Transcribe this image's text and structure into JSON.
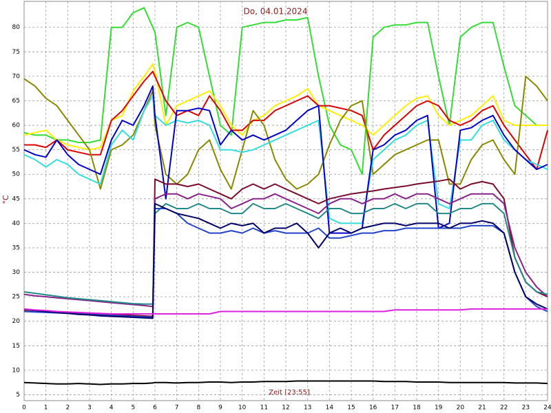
{
  "chart_data": {
    "type": "line",
    "title": "Do, 04.01.2024",
    "xlabel": "Zeit [23:55]",
    "ylabel": "°C",
    "xlim": [
      0,
      24
    ],
    "xticks": [
      0,
      1,
      2,
      3,
      4,
      5,
      6,
      7,
      8,
      9,
      10,
      11,
      12,
      13,
      14,
      15,
      16,
      17,
      18,
      19,
      20,
      21,
      22,
      23,
      24
    ],
    "ylim": [
      3.8,
      85.3
    ],
    "yticks": [
      5,
      10,
      15,
      20,
      25,
      30,
      35,
      40,
      45,
      50,
      55,
      60,
      65,
      70,
      75,
      80
    ],
    "grid": true,
    "x": [
      0,
      0.5,
      1,
      1.5,
      2,
      2.5,
      3,
      3.5,
      4,
      4.5,
      5,
      5.5,
      5.9,
      6,
      6.5,
      7,
      7.5,
      8,
      8.5,
      9,
      9.5,
      10,
      10.5,
      11,
      11.5,
      12,
      12.5,
      13,
      13.5,
      14,
      14.5,
      15,
      15.5,
      16,
      16.5,
      17,
      17.5,
      18,
      18.5,
      19,
      19.5,
      20,
      20.5,
      21,
      21.5,
      22,
      22.5,
      23,
      23.5,
      24
    ],
    "series": [
      {
        "color": "#33dd33",
        "values": [
          58.5,
          58,
          58,
          57,
          57,
          56.5,
          56.5,
          57,
          80,
          80,
          83,
          84,
          80,
          79,
          62,
          80,
          81,
          80,
          70,
          60,
          58,
          80,
          80.5,
          81,
          81,
          81.5,
          81.5,
          82,
          70,
          60,
          56,
          55,
          50,
          78,
          80,
          80.5,
          80.5,
          81,
          81,
          70,
          60,
          78,
          80,
          81,
          81,
          72,
          64,
          62,
          60,
          60
        ]
      },
      {
        "color": "#ffee00",
        "values": [
          58,
          58.5,
          59,
          57,
          56,
          55.5,
          55,
          55.5,
          61,
          62,
          67,
          70,
          72.5,
          71,
          60,
          64,
          65,
          66,
          67,
          64,
          60,
          58,
          61,
          62,
          64,
          65,
          66,
          67.5,
          64,
          63,
          62,
          61,
          60,
          58,
          60,
          62,
          64,
          65.5,
          66,
          62,
          60,
          61,
          62,
          64,
          66,
          61,
          60,
          60,
          60,
          60
        ]
      },
      {
        "color": "#dd0000",
        "values": [
          56,
          56,
          55.5,
          57,
          55,
          54.5,
          54,
          54,
          61,
          63,
          66,
          69,
          71,
          70,
          65,
          62,
          63,
          62,
          66,
          63,
          59,
          59,
          61,
          61,
          63,
          64,
          65,
          66,
          64,
          64,
          63.5,
          63,
          62,
          55,
          58,
          60,
          62,
          64,
          65,
          64,
          61,
          60,
          61,
          63,
          64,
          60,
          57,
          54,
          51,
          59
        ]
      },
      {
        "color": "#888800",
        "values": [
          69.5,
          68,
          65.5,
          64,
          61,
          58,
          55,
          47,
          55,
          56,
          58,
          63,
          67,
          60,
          50,
          48,
          50,
          55,
          57,
          51,
          47,
          55,
          63,
          60,
          53,
          49,
          47,
          48,
          50,
          56,
          61,
          64,
          65,
          50,
          52,
          54,
          55,
          56,
          57,
          57,
          48,
          48,
          53,
          56,
          57,
          53,
          50,
          70,
          68,
          65
        ]
      },
      {
        "color": "#33dddd",
        "values": [
          54,
          53,
          51.5,
          53,
          52,
          50,
          49,
          48,
          56,
          59,
          57,
          63,
          66,
          62,
          60,
          61,
          60.5,
          61,
          60,
          55,
          55,
          54.5,
          55,
          56,
          57,
          58,
          59,
          60,
          61,
          41,
          40,
          40,
          40,
          53,
          55,
          57,
          58,
          60,
          61,
          44,
          43,
          57,
          57,
          60,
          61,
          57,
          55,
          53,
          52,
          51
        ]
      },
      {
        "color": "#0000cc",
        "values": [
          55,
          54,
          53.5,
          57,
          54,
          52,
          51,
          50,
          57,
          61,
          60,
          64,
          68,
          62,
          45,
          63,
          63,
          63.5,
          63,
          56,
          59,
          57,
          58,
          57,
          58,
          59,
          61,
          63,
          64,
          38,
          38,
          38,
          39,
          55,
          56,
          58,
          59,
          61,
          62,
          39,
          40,
          59,
          59.5,
          61,
          62,
          58,
          55,
          53,
          51,
          52
        ]
      },
      {
        "color": "#7a0a2a",
        "values": [
          22.3,
          22.2,
          22,
          21.9,
          21.8,
          21.7,
          21.6,
          21.5,
          21.4,
          21.3,
          21.2,
          21.1,
          21,
          49,
          48,
          48,
          47.5,
          48,
          47,
          46,
          45,
          47,
          48,
          47,
          48,
          47,
          46,
          45,
          44,
          45,
          45.5,
          46,
          46.3,
          46.6,
          47,
          47.3,
          47.6,
          48,
          48.3,
          48.6,
          49,
          47,
          48,
          48.5,
          48,
          45,
          33,
          28,
          26,
          25
        ]
      },
      {
        "color": "#882288",
        "values": [
          25.5,
          25.2,
          25,
          24.8,
          24.6,
          24.4,
          24.2,
          24,
          23.8,
          23.6,
          23.4,
          23.2,
          23,
          45,
          46,
          46,
          45,
          46,
          45.5,
          45,
          43,
          44,
          45,
          45,
          46,
          45,
          44,
          43,
          42,
          44,
          45,
          45,
          44,
          45,
          45,
          46,
          45,
          46,
          46,
          45,
          44,
          45,
          46,
          46,
          46,
          44,
          35,
          30,
          27,
          25
        ]
      },
      {
        "color": "#228888",
        "values": [
          26,
          25.7,
          25.4,
          25.1,
          24.8,
          24.6,
          24.4,
          24.2,
          24,
          23.8,
          23.6,
          23.5,
          23.5,
          42,
          44,
          43,
          43,
          44,
          43,
          43,
          42,
          42,
          44,
          43,
          43,
          44,
          43,
          42,
          41,
          43,
          43,
          42,
          42,
          43,
          43,
          44,
          43,
          44,
          44,
          42,
          42,
          43,
          43,
          44,
          44,
          42,
          33,
          28,
          26,
          25.5
        ]
      },
      {
        "color": "#2244cc",
        "values": [
          22,
          21.9,
          21.8,
          21.7,
          21.6,
          21.5,
          21.4,
          21.3,
          21.2,
          21.1,
          21,
          20.9,
          20.8,
          43,
          43,
          42,
          40,
          39,
          38,
          38,
          38.5,
          38,
          39,
          38,
          38.5,
          38,
          38,
          38,
          39,
          37,
          37,
          37.5,
          38,
          38,
          38.5,
          38.5,
          39,
          39,
          39,
          39,
          39,
          39,
          39.5,
          39.5,
          39.5,
          38,
          30,
          25,
          23,
          22
        ]
      },
      {
        "color": "#000066",
        "values": [
          22.5,
          22.2,
          22,
          21.8,
          21.6,
          21.4,
          21.3,
          21.1,
          21,
          20.9,
          20.8,
          20.7,
          20.6,
          44,
          43,
          42,
          41.5,
          41,
          40,
          39,
          40,
          39.5,
          40,
          38,
          39,
          39,
          40,
          38,
          35,
          38,
          39,
          38,
          39,
          39.5,
          40,
          40,
          39.5,
          40,
          40,
          40,
          39,
          40,
          40,
          40.5,
          40,
          38,
          30,
          25,
          23.5,
          22.5
        ]
      },
      {
        "color": "#dd22dd",
        "values": [
          22.5,
          22.3,
          22.2,
          22,
          21.9,
          21.8,
          21.7,
          21.6,
          21.5,
          21.5,
          21.5,
          21.5,
          21.5,
          21.5,
          21.5,
          21.5,
          21.5,
          21.5,
          21.5,
          22,
          22,
          22,
          22,
          22,
          22,
          22,
          22,
          22,
          22,
          22,
          22,
          22,
          22,
          22,
          22,
          22.3,
          22.3,
          22.3,
          22.3,
          22.3,
          22.3,
          22.3,
          22.5,
          22.5,
          22.5,
          22.5,
          22.5,
          22.5,
          22.5,
          22.5
        ]
      },
      {
        "color": "#000000",
        "values": [
          7.5,
          7.4,
          7.3,
          7.2,
          7.2,
          7.3,
          7.2,
          7.1,
          7.2,
          7.2,
          7.3,
          7.3,
          7.4,
          7.5,
          7.5,
          7.4,
          7.5,
          7.5,
          7.6,
          7.6,
          7.5,
          7.6,
          7.6,
          7.7,
          7.7,
          7.7,
          7.8,
          7.8,
          7.8,
          7.8,
          7.8,
          7.8,
          7.8,
          7.8,
          7.7,
          7.7,
          7.7,
          7.6,
          7.6,
          7.6,
          7.5,
          7.5,
          7.5,
          7.5,
          7.5,
          7.5,
          7.4,
          7.4,
          7.4,
          7.3
        ]
      }
    ]
  }
}
